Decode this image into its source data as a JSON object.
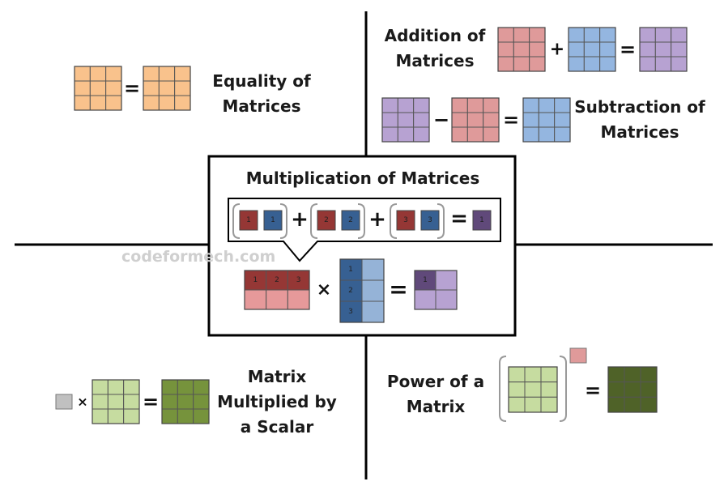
{
  "colors": {
    "equality": "#f9c28c",
    "addition_a": "#df9a9a",
    "addition_b": "#94b6e0",
    "result_purple": "#b7a2d2",
    "scalar_gray": "#c0c0c0",
    "scalar_light_green": "#c6dca0",
    "scalar_dark_green": "#76933c",
    "power_dark_green": "#4f6228",
    "mult_dark_red": "#953735",
    "mult_light_red": "#e6999a",
    "mult_dark_blue": "#376092",
    "mult_light_blue": "#95b3d7",
    "mult_dark_purple": "#60497a",
    "line": "#000000"
  },
  "operators": {
    "plus": "+",
    "minus": "−",
    "equals": "=",
    "times": "×"
  },
  "sections": {
    "equality": {
      "title": "Equality of\nMatrices"
    },
    "addition": {
      "title": "Addition of\nMatrices"
    },
    "subtraction": {
      "title": "Subtraction of\nMatrices"
    },
    "scalar": {
      "title": "Matrix\nMultiplied by\na Scalar"
    },
    "power": {
      "title": "Power of a\nMatrix"
    },
    "multiplication": {
      "title": "Multiplication of Matrices",
      "row_numbers": [
        "1",
        "2",
        "3"
      ],
      "col_numbers": [
        "1",
        "2",
        "3"
      ],
      "product_terms": [
        {
          "left": "1",
          "right": "1"
        },
        {
          "left": "2",
          "right": "2"
        },
        {
          "left": "3",
          "right": "3"
        }
      ],
      "result_cell": "1"
    }
  },
  "watermark": "codeformech.com"
}
